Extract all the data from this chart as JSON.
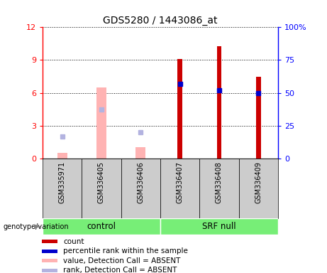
{
  "title": "GDS5280 / 1443086_at",
  "samples": [
    "GSM335971",
    "GSM336405",
    "GSM336406",
    "GSM336407",
    "GSM336408",
    "GSM336409"
  ],
  "count_values": [
    null,
    null,
    null,
    9.1,
    10.3,
    7.5
  ],
  "percentile_rank_pct": [
    null,
    null,
    null,
    57.0,
    52.0,
    50.0
  ],
  "absent_value": [
    0.5,
    6.5,
    1.0,
    null,
    null,
    null
  ],
  "absent_rank_pct": [
    16.5,
    37.5,
    20.0,
    null,
    null,
    null
  ],
  "ylim_left": [
    0,
    12
  ],
  "ylim_right": [
    0,
    100
  ],
  "yticks_left": [
    0,
    3,
    6,
    9,
    12
  ],
  "yticks_right": [
    0,
    25,
    50,
    75,
    100
  ],
  "yticklabels_left": [
    "0",
    "3",
    "6",
    "9",
    "12"
  ],
  "yticklabels_right": [
    "0",
    "25",
    "50",
    "75",
    "100%"
  ],
  "count_color": "#cc0000",
  "percentile_color": "#0000cc",
  "absent_value_color": "#ffb3b3",
  "absent_rank_color": "#b3b3e0",
  "control_color": "#77ee77",
  "srf_color": "#77ee77",
  "tick_area_color": "#cccccc",
  "absent_bar_width": 0.25,
  "count_bar_width": 0.12,
  "marker_size": 5,
  "legend_items": [
    {
      "label": "count",
      "color": "#cc0000"
    },
    {
      "label": "percentile rank within the sample",
      "color": "#0000cc"
    },
    {
      "label": "value, Detection Call = ABSENT",
      "color": "#ffb3b3"
    },
    {
      "label": "rank, Detection Call = ABSENT",
      "color": "#b3b3e0"
    }
  ]
}
